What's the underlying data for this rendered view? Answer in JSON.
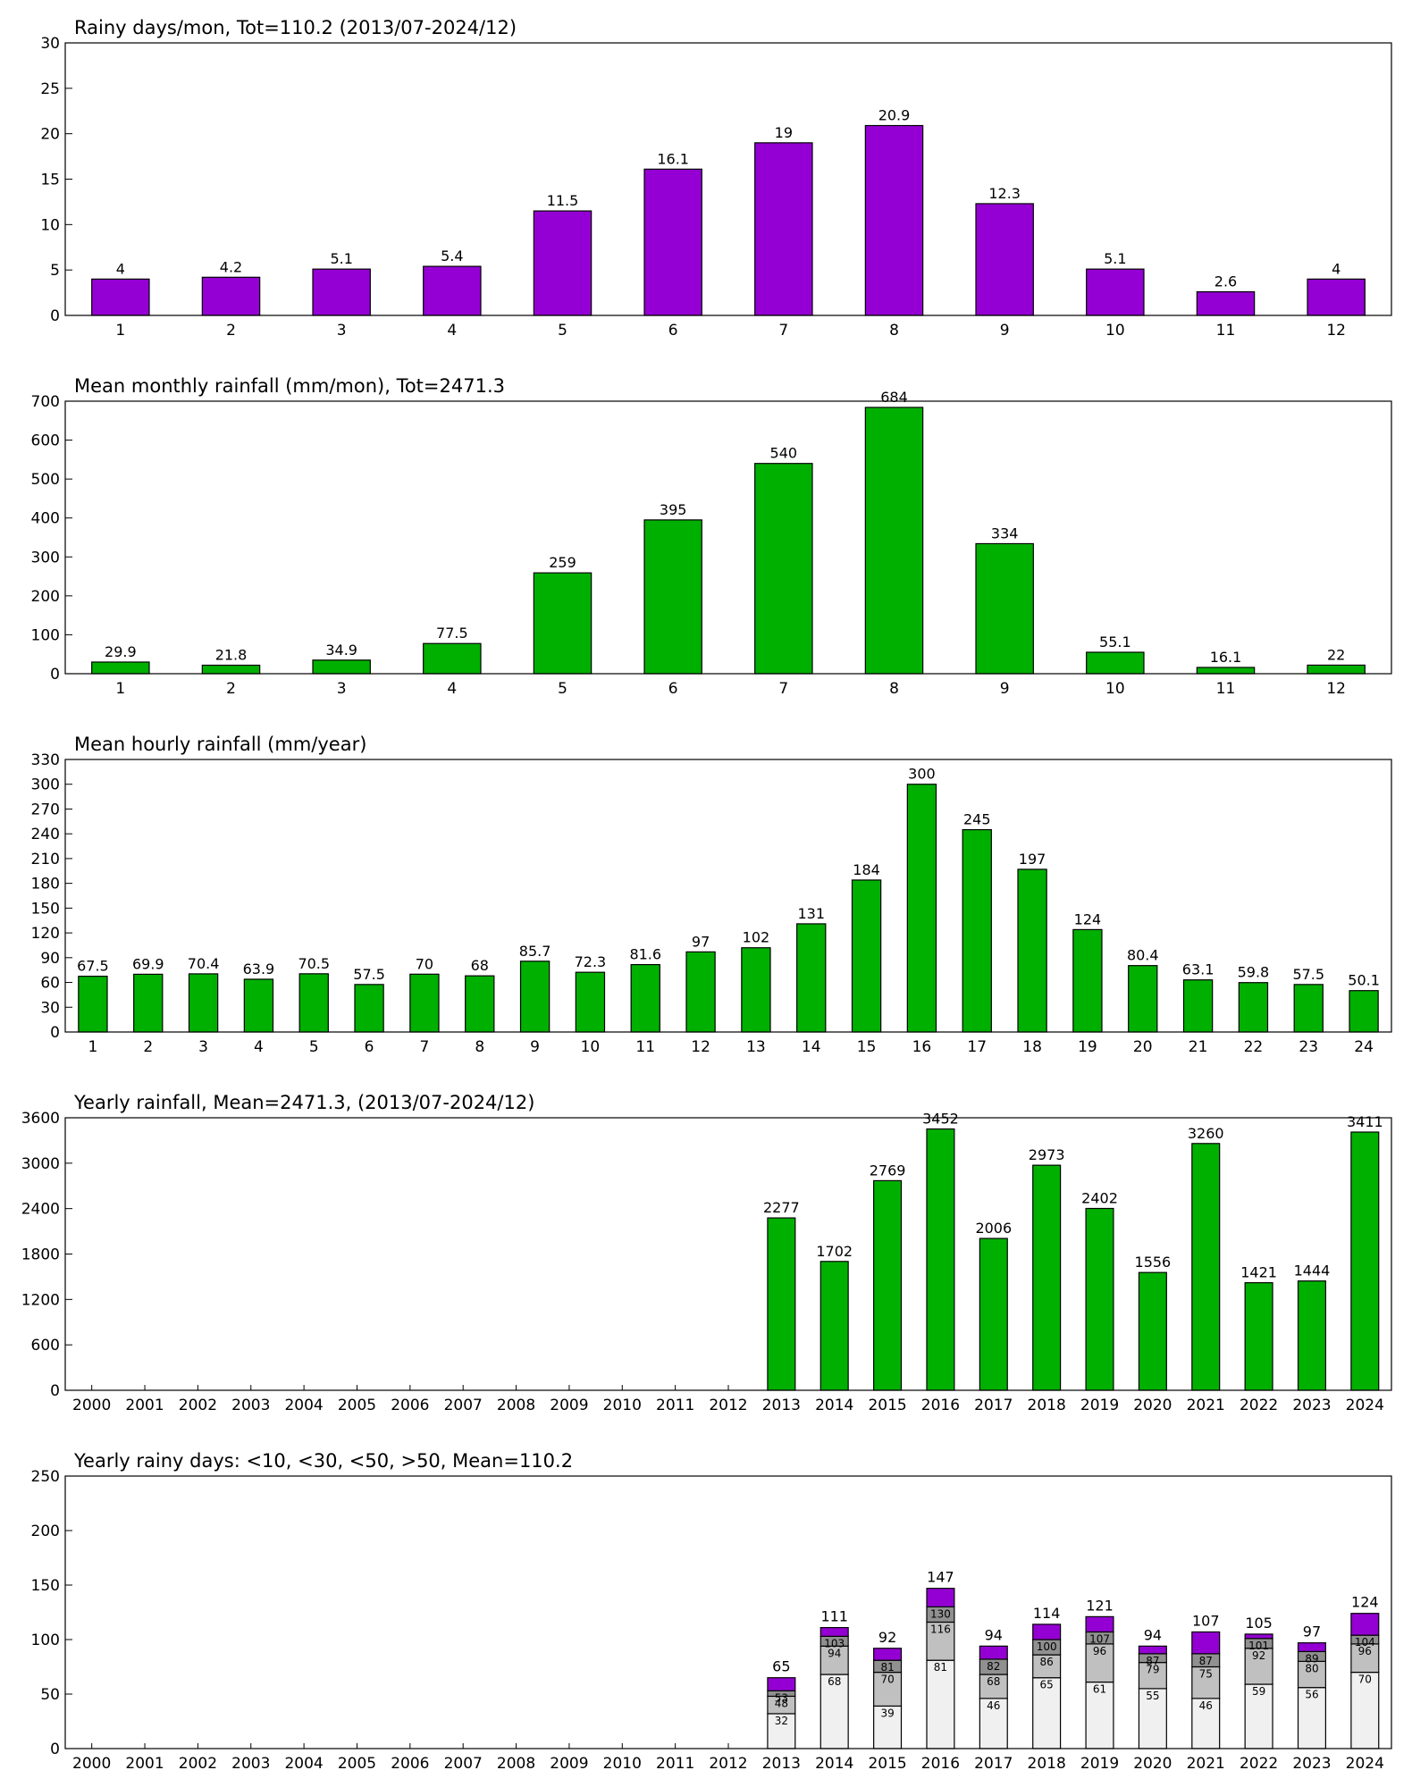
{
  "chart_data": [
    {
      "type": "bar",
      "title": "Rainy days/mon, Tot=110.2 (2013/07-2024/12)",
      "color": "#9400d3",
      "categories": [
        "1",
        "2",
        "3",
        "4",
        "5",
        "6",
        "7",
        "8",
        "9",
        "10",
        "11",
        "12"
      ],
      "values": [
        4,
        4.2,
        5.1,
        5.4,
        11.5,
        16.1,
        19,
        20.9,
        12.3,
        5.1,
        2.6,
        4
      ],
      "ylim": [
        0,
        30
      ],
      "yticks": [
        0,
        5,
        10,
        15,
        20,
        25,
        30
      ]
    },
    {
      "type": "bar",
      "title": "Mean monthly rainfall (mm/mon), Tot=2471.3",
      "color": "#00b000",
      "categories": [
        "1",
        "2",
        "3",
        "4",
        "5",
        "6",
        "7",
        "8",
        "9",
        "10",
        "11",
        "12"
      ],
      "values": [
        29.9,
        21.8,
        34.9,
        77.5,
        259,
        395,
        540,
        684,
        334,
        55.1,
        16.1,
        22
      ],
      "ylim": [
        0,
        700
      ],
      "yticks": [
        0,
        100,
        200,
        300,
        400,
        500,
        600,
        700
      ]
    },
    {
      "type": "bar",
      "title": "Mean hourly rainfall (mm/year)",
      "color": "#00b000",
      "categories": [
        "1",
        "2",
        "3",
        "4",
        "5",
        "6",
        "7",
        "8",
        "9",
        "10",
        "11",
        "12",
        "13",
        "14",
        "15",
        "16",
        "17",
        "18",
        "19",
        "20",
        "21",
        "22",
        "23",
        "24"
      ],
      "values": [
        67.5,
        69.9,
        70.4,
        63.9,
        70.5,
        57.5,
        70,
        68,
        85.7,
        72.3,
        81.6,
        97,
        102,
        131,
        184,
        300,
        245,
        197,
        124,
        80.4,
        63.1,
        59.8,
        57.5,
        50.1
      ],
      "ylim": [
        0,
        330
      ],
      "yticks": [
        0,
        30,
        60,
        90,
        120,
        150,
        180,
        210,
        240,
        270,
        300,
        330
      ]
    },
    {
      "type": "bar",
      "title": "Yearly rainfall, Mean=2471.3, (2013/07-2024/12)",
      "color": "#00b000",
      "categories": [
        "2000",
        "2001",
        "2002",
        "2003",
        "2004",
        "2005",
        "2006",
        "2007",
        "2008",
        "2009",
        "2010",
        "2011",
        "2012",
        "2013",
        "2014",
        "2015",
        "2016",
        "2017",
        "2018",
        "2019",
        "2020",
        "2021",
        "2022",
        "2023",
        "2024"
      ],
      "values": [
        null,
        null,
        null,
        null,
        null,
        null,
        null,
        null,
        null,
        null,
        null,
        null,
        null,
        2277,
        1702,
        2769,
        3452,
        2006,
        2973,
        2402,
        1556,
        3260,
        1421,
        1444,
        3411
      ],
      "ylim": [
        0,
        3600
      ],
      "yticks": [
        0,
        600,
        1200,
        1800,
        2400,
        3000,
        3600
      ]
    },
    {
      "type": "stacked_bar",
      "title": "Yearly rainy days: <10, <30, <50, >50, Mean=110.2",
      "categories": [
        "2000",
        "2001",
        "2002",
        "2003",
        "2004",
        "2005",
        "2006",
        "2007",
        "2008",
        "2009",
        "2010",
        "2011",
        "2012",
        "2013",
        "2014",
        "2015",
        "2016",
        "2017",
        "2018",
        "2019",
        "2020",
        "2021",
        "2022",
        "2023",
        "2024"
      ],
      "series": [
        {
          "color": "#f0f0f0",
          "values": [
            null,
            null,
            null,
            null,
            null,
            null,
            null,
            null,
            null,
            null,
            null,
            null,
            null,
            32,
            68,
            39,
            81,
            46,
            65,
            61,
            55,
            46,
            59,
            56,
            70
          ],
          "value_labels": [
            null,
            null,
            null,
            null,
            null,
            null,
            null,
            null,
            null,
            null,
            null,
            null,
            null,
            "32",
            "68",
            "39",
            "81",
            "46",
            "65",
            "61",
            "55",
            "46",
            "59",
            "56",
            "70"
          ]
        },
        {
          "color": "#c0c0c0",
          "values": [
            null,
            null,
            null,
            null,
            null,
            null,
            null,
            null,
            null,
            null,
            null,
            null,
            null,
            16,
            26,
            31,
            35,
            22,
            21,
            35,
            24,
            29,
            33,
            24,
            26
          ],
          "value_labels": [
            null,
            null,
            null,
            null,
            null,
            null,
            null,
            null,
            null,
            null,
            null,
            null,
            null,
            "48",
            "94",
            "70",
            "116",
            "68",
            "86",
            "96",
            "79",
            "75",
            "92",
            "80",
            "96"
          ]
        },
        {
          "color": "#909090",
          "values": [
            null,
            null,
            null,
            null,
            null,
            null,
            null,
            null,
            null,
            null,
            null,
            null,
            null,
            5,
            9,
            11,
            14,
            14,
            14,
            11,
            8,
            12,
            9,
            9,
            8
          ],
          "value_labels": [
            null,
            null,
            null,
            null,
            null,
            null,
            null,
            null,
            null,
            null,
            null,
            null,
            null,
            "53",
            "103",
            "81",
            "130",
            "82",
            "100",
            "107",
            "87",
            "87",
            "101",
            "89",
            "104"
          ]
        },
        {
          "color": "#9400d3",
          "values": [
            null,
            null,
            null,
            null,
            null,
            null,
            null,
            null,
            null,
            null,
            null,
            null,
            null,
            12,
            8,
            11,
            17,
            12,
            14,
            14,
            7,
            20,
            4,
            8,
            20
          ],
          "value_labels": [
            null,
            null,
            null,
            null,
            null,
            null,
            null,
            null,
            null,
            null,
            null,
            null,
            null,
            "65",
            "111",
            "92",
            "147",
            "94",
            "114",
            "121",
            "94",
            "107",
            "105",
            "97",
            "124"
          ]
        }
      ],
      "ylim": [
        0,
        250
      ],
      "yticks": [
        0,
        50,
        100,
        150,
        200,
        250
      ]
    }
  ]
}
